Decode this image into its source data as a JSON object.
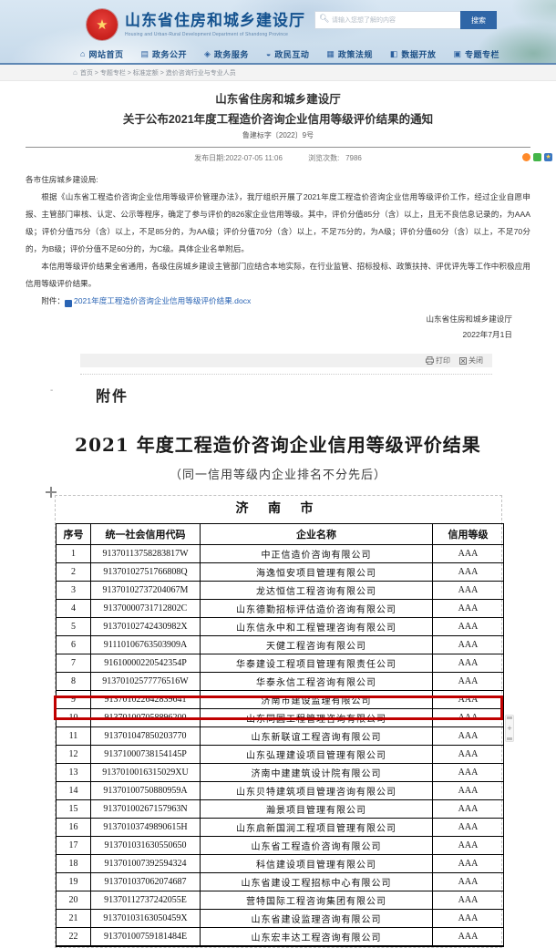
{
  "header": {
    "title": "山东省住房和城乡建设厅",
    "subtitle_en": "Housing and Urban-Rural Development Department of Shandong Province",
    "search": {
      "placeholder": "请输入您想了解的内容",
      "button": "搜索"
    },
    "nav": [
      {
        "icon": "home",
        "label": "网站首页"
      },
      {
        "icon": "gov",
        "label": "政务公开"
      },
      {
        "icon": "shield",
        "label": "政务服务"
      },
      {
        "icon": "chat",
        "label": "政民互动"
      },
      {
        "icon": "law",
        "label": "政策法规"
      },
      {
        "icon": "data",
        "label": "数据开放"
      },
      {
        "icon": "special",
        "label": "专题专栏"
      }
    ]
  },
  "breadcrumb": {
    "text": "首页 > 专题专栏 > 标准定额 > 造价咨询行业与专业人员"
  },
  "article": {
    "title_line1": "山东省住房和城乡建设厅",
    "title_line2": "关于公布2021年度工程造价咨询企业信用等级评价结果的通知",
    "doc_number": "鲁建标字〔2022〕9号",
    "publish_line": "发布日期:2022-07-05 11:06",
    "views_label": "浏览次数:",
    "views_count": "7986",
    "salutation": "各市住房城乡建设局:",
    "paragraphs": [
      "根据《山东省工程造价咨询企业信用等级评价管理办法》，我厅组织开展了2021年度工程造价咨询企业信用等级评价工作，经过企业自愿申报、主管部门审核、认定、公示等程序，确定了参与评价的826家企业信用等级。其中，评价分值85分（含）以上，且无不良信息记录的，为AAA级；评价分值75分（含）以上，不足85分的，为AA级；评价分值70分（含）以上，不足75分的，为A级；评价分值60分（含）以上，不足70分的，为B级；评价分值不足60分的，为C级。具体企业名单附后。",
      "本信用等级评价结果全省通用，各级住房城乡建设主管部门应结合本地实际，在行业监管、招标投标、政策扶持、评优评先等工作中积极应用信用等级评价结果。"
    ],
    "attachment_label": "附件：",
    "attachment_link": "2021年度工程造价咨询企业信用等级评价结果.docx",
    "signer": "山东省住房和城乡建设厅",
    "sign_date": "2022年7月1日",
    "print_label": "打印",
    "close_label": "关闭",
    "attachment_section_title": "附件"
  },
  "doc": {
    "big_title": "2021 年度工程造价咨询企业信用等级评价结果",
    "subtitle": "（同一信用等级内企业排名不分先后）",
    "city": "济 南 市",
    "columns": [
      "序号",
      "统一社会信用代码",
      "企业名称",
      "信用等级"
    ],
    "highlight_row": 9,
    "rows": [
      [
        "1",
        "91370113758283817W",
        "中正信造价咨询有限公司",
        "AAA"
      ],
      [
        "2",
        "91370102751766808Q",
        "海逸恒安项目管理有限公司",
        "AAA"
      ],
      [
        "3",
        "91370102737204067M",
        "龙达恒信工程咨询有限公司",
        "AAA"
      ],
      [
        "4",
        "91370000731712802C",
        "山东德勤招标评估造价咨询有限公司",
        "AAA"
      ],
      [
        "5",
        "91370102742430982X",
        "山东信永中和工程管理咨询有限公司",
        "AAA"
      ],
      [
        "6",
        "91110106763503909A",
        "天健工程咨询有限公司",
        "AAA"
      ],
      [
        "7",
        "91610000220542354P",
        "华泰建设工程项目管理有限责任公司",
        "AAA"
      ],
      [
        "8",
        "91370102577776516W",
        "华泰永信工程咨询有限公司",
        "AAA"
      ],
      [
        "9",
        "913701022642839641",
        "济南市建设监理有限公司",
        "AAA"
      ],
      [
        "10",
        "913701007058896200",
        "山东同圆工程管理咨询有限公司",
        "AAA"
      ],
      [
        "11",
        "913701047850203770",
        "山东新联谊工程咨询有限公司",
        "AAA"
      ],
      [
        "12",
        "91371000738154145P",
        "山东弘理建设项目管理有限公司",
        "AAA"
      ],
      [
        "13",
        "9137010016315029XU",
        "济南中建建筑设计院有限公司",
        "AAA"
      ],
      [
        "14",
        "91370100750880959A",
        "山东贝特建筑项目管理咨询有限公司",
        "AAA"
      ],
      [
        "15",
        "91370100267157963N",
        "瀚景项目管理有限公司",
        "AAA"
      ],
      [
        "16",
        "91370103749890615H",
        "山东启新国润工程项目管理有限公司",
        "AAA"
      ],
      [
        "17",
        "913701031630550650",
        "山东省工程造价咨询有限公司",
        "AAA"
      ],
      [
        "18",
        "913701007392594324",
        "科信建设项目管理有限公司",
        "AAA"
      ],
      [
        "19",
        "913701037062074687",
        "山东省建设工程招标中心有限公司",
        "AAA"
      ],
      [
        "20",
        "91370112737242055E",
        "营特国际工程咨询集团有限公司",
        "AAA"
      ],
      [
        "21",
        "91370103163050459X",
        "山东省建设监理咨询有限公司",
        "AAA"
      ],
      [
        "22",
        "91370100759181484E",
        "山东宏丰达工程咨询有限公司",
        "AAA"
      ]
    ]
  },
  "colors": {
    "accent_blue": "#14528f",
    "nav_blue": "#1d5086",
    "link_blue": "#2a64b4",
    "search_button_blue": "#2f66a7",
    "highlight_red": "#c00000"
  }
}
